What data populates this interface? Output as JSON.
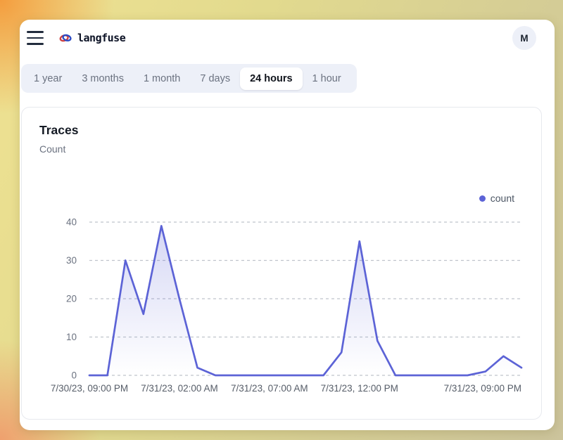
{
  "header": {
    "brand": "langfuse",
    "avatar_initial": "M"
  },
  "time_range_tabs": {
    "items": [
      {
        "label": "1 year",
        "selected": false
      },
      {
        "label": "3 months",
        "selected": false
      },
      {
        "label": "1 month",
        "selected": false
      },
      {
        "label": "7 days",
        "selected": false
      },
      {
        "label": "24 hours",
        "selected": true
      },
      {
        "label": "1 hour",
        "selected": false
      }
    ]
  },
  "traces_card": {
    "title": "Traces",
    "subtitle": "Count"
  },
  "chart_data": {
    "type": "area",
    "title": "Traces",
    "ylabel": "Count",
    "x_unit": "hourly",
    "x_start": "7/30/23, 09:00 PM",
    "x_end": "7/31/23, 09:00 PM",
    "series": [
      {
        "name": "count",
        "values": [
          0,
          0,
          30,
          16,
          39,
          20,
          2,
          0,
          0,
          0,
          0,
          0,
          0,
          0,
          6,
          35,
          9,
          0,
          0,
          0,
          0,
          0,
          1,
          5,
          2
        ]
      }
    ],
    "x_tick_indices": [
      0,
      5,
      10,
      15,
      24
    ],
    "x_tick_labels": [
      "7/30/23, 09:00 PM",
      "7/31/23, 02:00 AM",
      "7/31/23, 07:00 AM",
      "7/31/23, 12:00 PM",
      "7/31/23, 09:00 PM"
    ],
    "ylim": [
      0,
      40
    ],
    "y_ticks": [
      0,
      10,
      20,
      30,
      40
    ],
    "grid": "horizontal dashed",
    "legend_position": "top-right",
    "legend": [
      {
        "label": "count",
        "color": "#5c63d6"
      }
    ]
  },
  "colors": {
    "accent_indigo": "#5c63d6",
    "tab_bar_bg": "#edf0f8",
    "card_border": "#e7e9ee",
    "grid_gray": "#bfc4cc",
    "axis_text": "#6b7280",
    "frame_orange": "#f49d3e",
    "frame_khaki": "#d5cd95"
  }
}
